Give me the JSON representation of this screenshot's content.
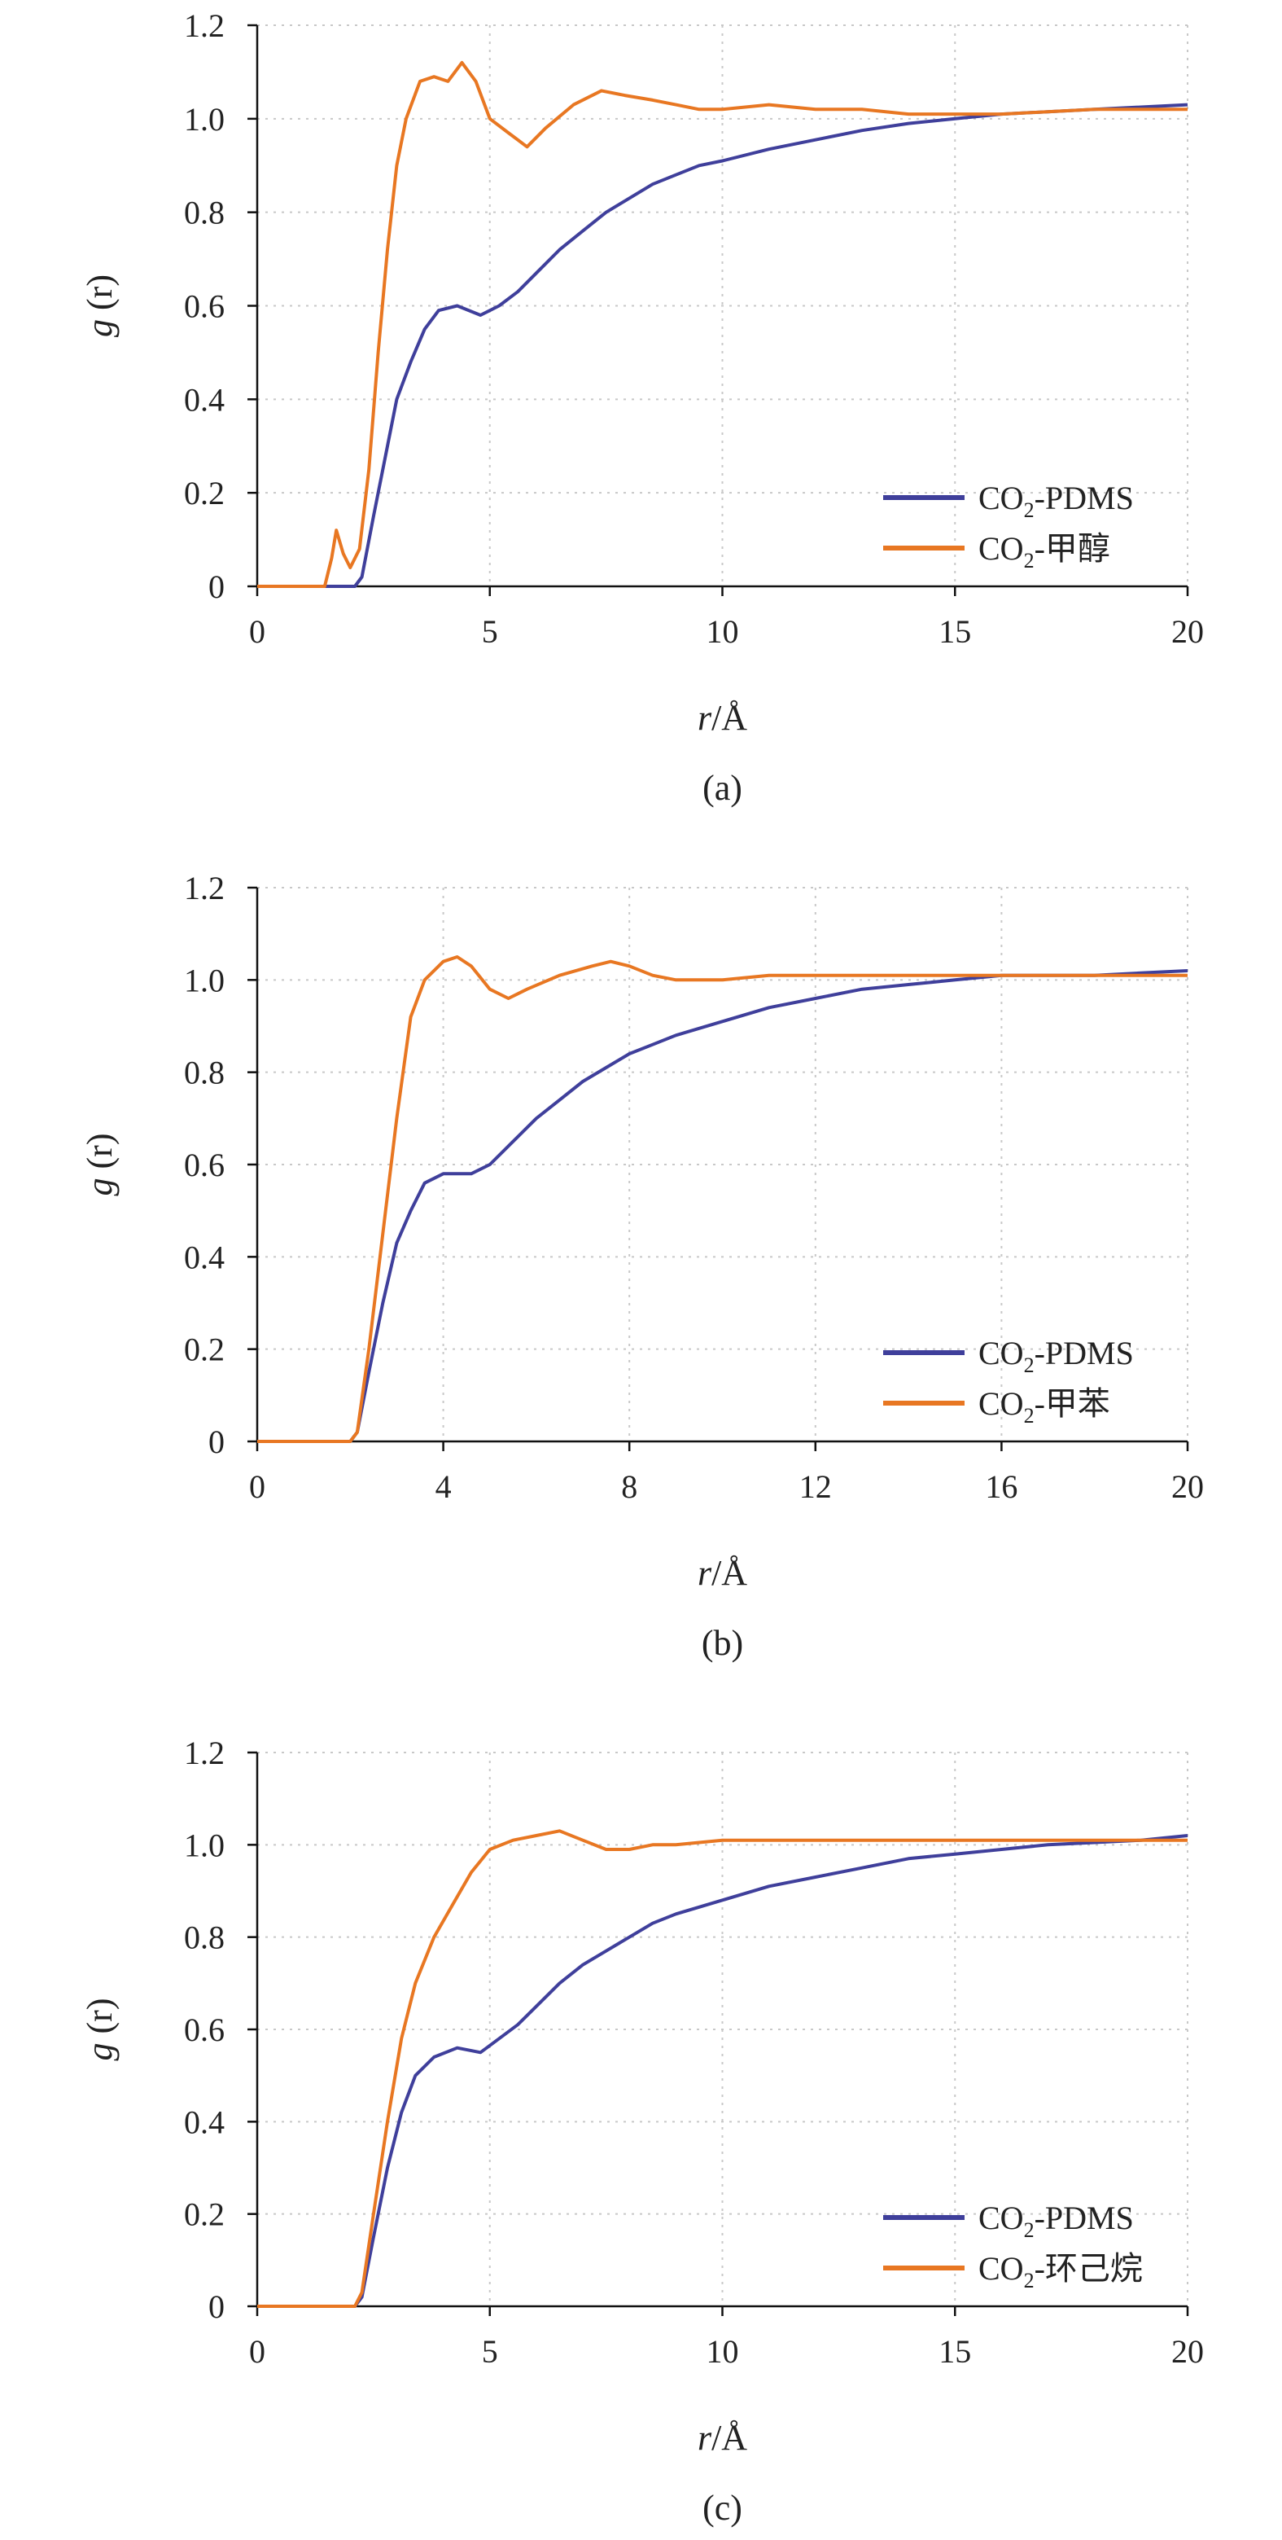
{
  "chart_data": [
    {
      "type": "line",
      "panel_label": "(a)",
      "xlabel_italic": "r",
      "xlabel_unit": "/Å",
      "ylabel_italic": "g",
      "ylabel_rest": " (r)",
      "xlim": [
        0,
        20
      ],
      "ylim": [
        0,
        1.2
      ],
      "xticks": [
        "0",
        "5",
        "10",
        "15",
        "20"
      ],
      "xtick_values": [
        0,
        5,
        10,
        15,
        20
      ],
      "yticks": [
        "0",
        "0.2",
        "0.4",
        "0.6",
        "0.8",
        "1.0",
        "1.2"
      ],
      "ytick_values": [
        0,
        0.2,
        0.4,
        0.6,
        0.8,
        1.0,
        1.2
      ],
      "grid": true,
      "legend_position": "bottom-right",
      "series": [
        {
          "name_main": "CO",
          "name_sub": "2",
          "name_rest": "-PDMS",
          "color": "#3f3f9b",
          "points": [
            [
              0,
              0
            ],
            [
              2.1,
              0
            ],
            [
              2.25,
              0.02
            ],
            [
              2.5,
              0.15
            ],
            [
              2.8,
              0.3
            ],
            [
              3.0,
              0.4
            ],
            [
              3.3,
              0.48
            ],
            [
              3.6,
              0.55
            ],
            [
              3.9,
              0.59
            ],
            [
              4.3,
              0.6
            ],
            [
              4.8,
              0.58
            ],
            [
              5.2,
              0.6
            ],
            [
              5.6,
              0.63
            ],
            [
              6.0,
              0.67
            ],
            [
              6.5,
              0.72
            ],
            [
              7.0,
              0.76
            ],
            [
              7.5,
              0.8
            ],
            [
              8.0,
              0.83
            ],
            [
              8.5,
              0.86
            ],
            [
              9.0,
              0.88
            ],
            [
              9.5,
              0.9
            ],
            [
              10.0,
              0.91
            ],
            [
              11.0,
              0.935
            ],
            [
              12.0,
              0.955
            ],
            [
              13.0,
              0.975
            ],
            [
              14.0,
              0.99
            ],
            [
              15.0,
              1.0
            ],
            [
              16.0,
              1.01
            ],
            [
              17.0,
              1.015
            ],
            [
              18.0,
              1.02
            ],
            [
              19.0,
              1.025
            ],
            [
              20.0,
              1.03
            ]
          ]
        },
        {
          "name_main": "CO",
          "name_sub": "2",
          "name_rest": "-甲醇",
          "color": "#e87722",
          "points": [
            [
              0,
              0
            ],
            [
              1.45,
              0
            ],
            [
              1.6,
              0.06
            ],
            [
              1.7,
              0.12
            ],
            [
              1.85,
              0.07
            ],
            [
              2.0,
              0.04
            ],
            [
              2.2,
              0.08
            ],
            [
              2.4,
              0.25
            ],
            [
              2.6,
              0.5
            ],
            [
              2.8,
              0.72
            ],
            [
              3.0,
              0.9
            ],
            [
              3.2,
              1.0
            ],
            [
              3.5,
              1.08
            ],
            [
              3.8,
              1.09
            ],
            [
              4.1,
              1.08
            ],
            [
              4.4,
              1.12
            ],
            [
              4.7,
              1.08
            ],
            [
              5.0,
              1.0
            ],
            [
              5.4,
              0.97
            ],
            [
              5.8,
              0.94
            ],
            [
              6.2,
              0.98
            ],
            [
              6.8,
              1.03
            ],
            [
              7.4,
              1.06
            ],
            [
              7.9,
              1.05
            ],
            [
              8.5,
              1.04
            ],
            [
              9.0,
              1.03
            ],
            [
              9.5,
              1.02
            ],
            [
              10.0,
              1.02
            ],
            [
              11.0,
              1.03
            ],
            [
              12.0,
              1.02
            ],
            [
              13.0,
              1.02
            ],
            [
              14.0,
              1.01
            ],
            [
              16.0,
              1.01
            ],
            [
              18.0,
              1.02
            ],
            [
              20.0,
              1.02
            ]
          ]
        }
      ]
    },
    {
      "type": "line",
      "panel_label": "(b)",
      "xlabel_italic": "r",
      "xlabel_unit": "/Å",
      "ylabel_italic": "g",
      "ylabel_rest": " (r)",
      "xlim": [
        0,
        20
      ],
      "ylim": [
        0,
        1.2
      ],
      "xticks": [
        "0",
        "4",
        "8",
        "12",
        "16",
        "20"
      ],
      "xtick_values": [
        0,
        4,
        8,
        12,
        16,
        20
      ],
      "yticks": [
        "0",
        "0.2",
        "0.4",
        "0.6",
        "0.8",
        "1.0",
        "1.2"
      ],
      "ytick_values": [
        0,
        0.2,
        0.4,
        0.6,
        0.8,
        1.0,
        1.2
      ],
      "grid": true,
      "legend_position": "bottom-right",
      "series": [
        {
          "name_main": "CO",
          "name_sub": "2",
          "name_rest": "-PDMS",
          "color": "#3f3f9b",
          "points": [
            [
              0,
              0
            ],
            [
              2.0,
              0
            ],
            [
              2.15,
              0.02
            ],
            [
              2.4,
              0.15
            ],
            [
              2.7,
              0.3
            ],
            [
              3.0,
              0.43
            ],
            [
              3.3,
              0.5
            ],
            [
              3.6,
              0.56
            ],
            [
              4.0,
              0.58
            ],
            [
              4.6,
              0.58
            ],
            [
              5.0,
              0.6
            ],
            [
              5.5,
              0.65
            ],
            [
              6.0,
              0.7
            ],
            [
              6.5,
              0.74
            ],
            [
              7.0,
              0.78
            ],
            [
              7.5,
              0.81
            ],
            [
              8.0,
              0.84
            ],
            [
              8.5,
              0.86
            ],
            [
              9.0,
              0.88
            ],
            [
              10.0,
              0.91
            ],
            [
              11.0,
              0.94
            ],
            [
              12.0,
              0.96
            ],
            [
              13.0,
              0.98
            ],
            [
              14.0,
              0.99
            ],
            [
              15.0,
              1.0
            ],
            [
              16.0,
              1.01
            ],
            [
              17.0,
              1.01
            ],
            [
              18.0,
              1.01
            ],
            [
              19.0,
              1.015
            ],
            [
              20.0,
              1.02
            ]
          ]
        },
        {
          "name_main": "CO",
          "name_sub": "2",
          "name_rest": "-甲苯",
          "color": "#e87722",
          "points": [
            [
              0,
              0
            ],
            [
              2.0,
              0
            ],
            [
              2.15,
              0.02
            ],
            [
              2.4,
              0.2
            ],
            [
              2.7,
              0.45
            ],
            [
              3.0,
              0.7
            ],
            [
              3.3,
              0.92
            ],
            [
              3.6,
              1.0
            ],
            [
              4.0,
              1.04
            ],
            [
              4.3,
              1.05
            ],
            [
              4.6,
              1.03
            ],
            [
              5.0,
              0.98
            ],
            [
              5.4,
              0.96
            ],
            [
              5.8,
              0.98
            ],
            [
              6.5,
              1.01
            ],
            [
              7.2,
              1.03
            ],
            [
              7.6,
              1.04
            ],
            [
              8.0,
              1.03
            ],
            [
              8.5,
              1.01
            ],
            [
              9.0,
              1.0
            ],
            [
              10.0,
              1.0
            ],
            [
              11.0,
              1.01
            ],
            [
              12.0,
              1.01
            ],
            [
              14.0,
              1.01
            ],
            [
              16.0,
              1.01
            ],
            [
              18.0,
              1.01
            ],
            [
              20.0,
              1.01
            ]
          ]
        }
      ]
    },
    {
      "type": "line",
      "panel_label": "(c)",
      "xlabel_italic": "r",
      "xlabel_unit": "/Å",
      "ylabel_italic": "g",
      "ylabel_rest": " (r)",
      "xlim": [
        0,
        20
      ],
      "ylim": [
        0,
        1.2
      ],
      "xticks": [
        "0",
        "5",
        "10",
        "15",
        "20"
      ],
      "xtick_values": [
        0,
        5,
        10,
        15,
        20
      ],
      "yticks": [
        "0",
        "0.2",
        "0.4",
        "0.6",
        "0.8",
        "1.0",
        "1.2"
      ],
      "ytick_values": [
        0,
        0.2,
        0.4,
        0.6,
        0.8,
        1.0,
        1.2
      ],
      "grid": true,
      "legend_position": "bottom-right",
      "series": [
        {
          "name_main": "CO",
          "name_sub": "2",
          "name_rest": "-PDMS",
          "color": "#3f3f9b",
          "points": [
            [
              0,
              0
            ],
            [
              2.1,
              0
            ],
            [
              2.25,
              0.02
            ],
            [
              2.5,
              0.15
            ],
            [
              2.8,
              0.3
            ],
            [
              3.1,
              0.42
            ],
            [
              3.4,
              0.5
            ],
            [
              3.8,
              0.54
            ],
            [
              4.3,
              0.56
            ],
            [
              4.8,
              0.55
            ],
            [
              5.2,
              0.58
            ],
            [
              5.6,
              0.61
            ],
            [
              6.0,
              0.65
            ],
            [
              6.5,
              0.7
            ],
            [
              7.0,
              0.74
            ],
            [
              7.5,
              0.77
            ],
            [
              8.0,
              0.8
            ],
            [
              8.5,
              0.83
            ],
            [
              9.0,
              0.85
            ],
            [
              10.0,
              0.88
            ],
            [
              11.0,
              0.91
            ],
            [
              12.0,
              0.93
            ],
            [
              13.0,
              0.95
            ],
            [
              14.0,
              0.97
            ],
            [
              15.0,
              0.98
            ],
            [
              16.0,
              0.99
            ],
            [
              17.0,
              1.0
            ],
            [
              18.0,
              1.005
            ],
            [
              19.0,
              1.01
            ],
            [
              20.0,
              1.02
            ]
          ]
        },
        {
          "name_main": "CO",
          "name_sub": "2",
          "name_rest": "-环己烷",
          "color": "#e87722",
          "points": [
            [
              0,
              0
            ],
            [
              2.1,
              0
            ],
            [
              2.25,
              0.03
            ],
            [
              2.5,
              0.2
            ],
            [
              2.8,
              0.4
            ],
            [
              3.1,
              0.58
            ],
            [
              3.4,
              0.7
            ],
            [
              3.8,
              0.8
            ],
            [
              4.2,
              0.87
            ],
            [
              4.6,
              0.94
            ],
            [
              5.0,
              0.99
            ],
            [
              5.5,
              1.01
            ],
            [
              6.0,
              1.02
            ],
            [
              6.5,
              1.03
            ],
            [
              7.0,
              1.01
            ],
            [
              7.5,
              0.99
            ],
            [
              8.0,
              0.99
            ],
            [
              8.5,
              1.0
            ],
            [
              9.0,
              1.0
            ],
            [
              10.0,
              1.01
            ],
            [
              11.0,
              1.01
            ],
            [
              12.0,
              1.01
            ],
            [
              14.0,
              1.01
            ],
            [
              16.0,
              1.01
            ],
            [
              18.0,
              1.01
            ],
            [
              20.0,
              1.01
            ]
          ]
        }
      ]
    }
  ]
}
